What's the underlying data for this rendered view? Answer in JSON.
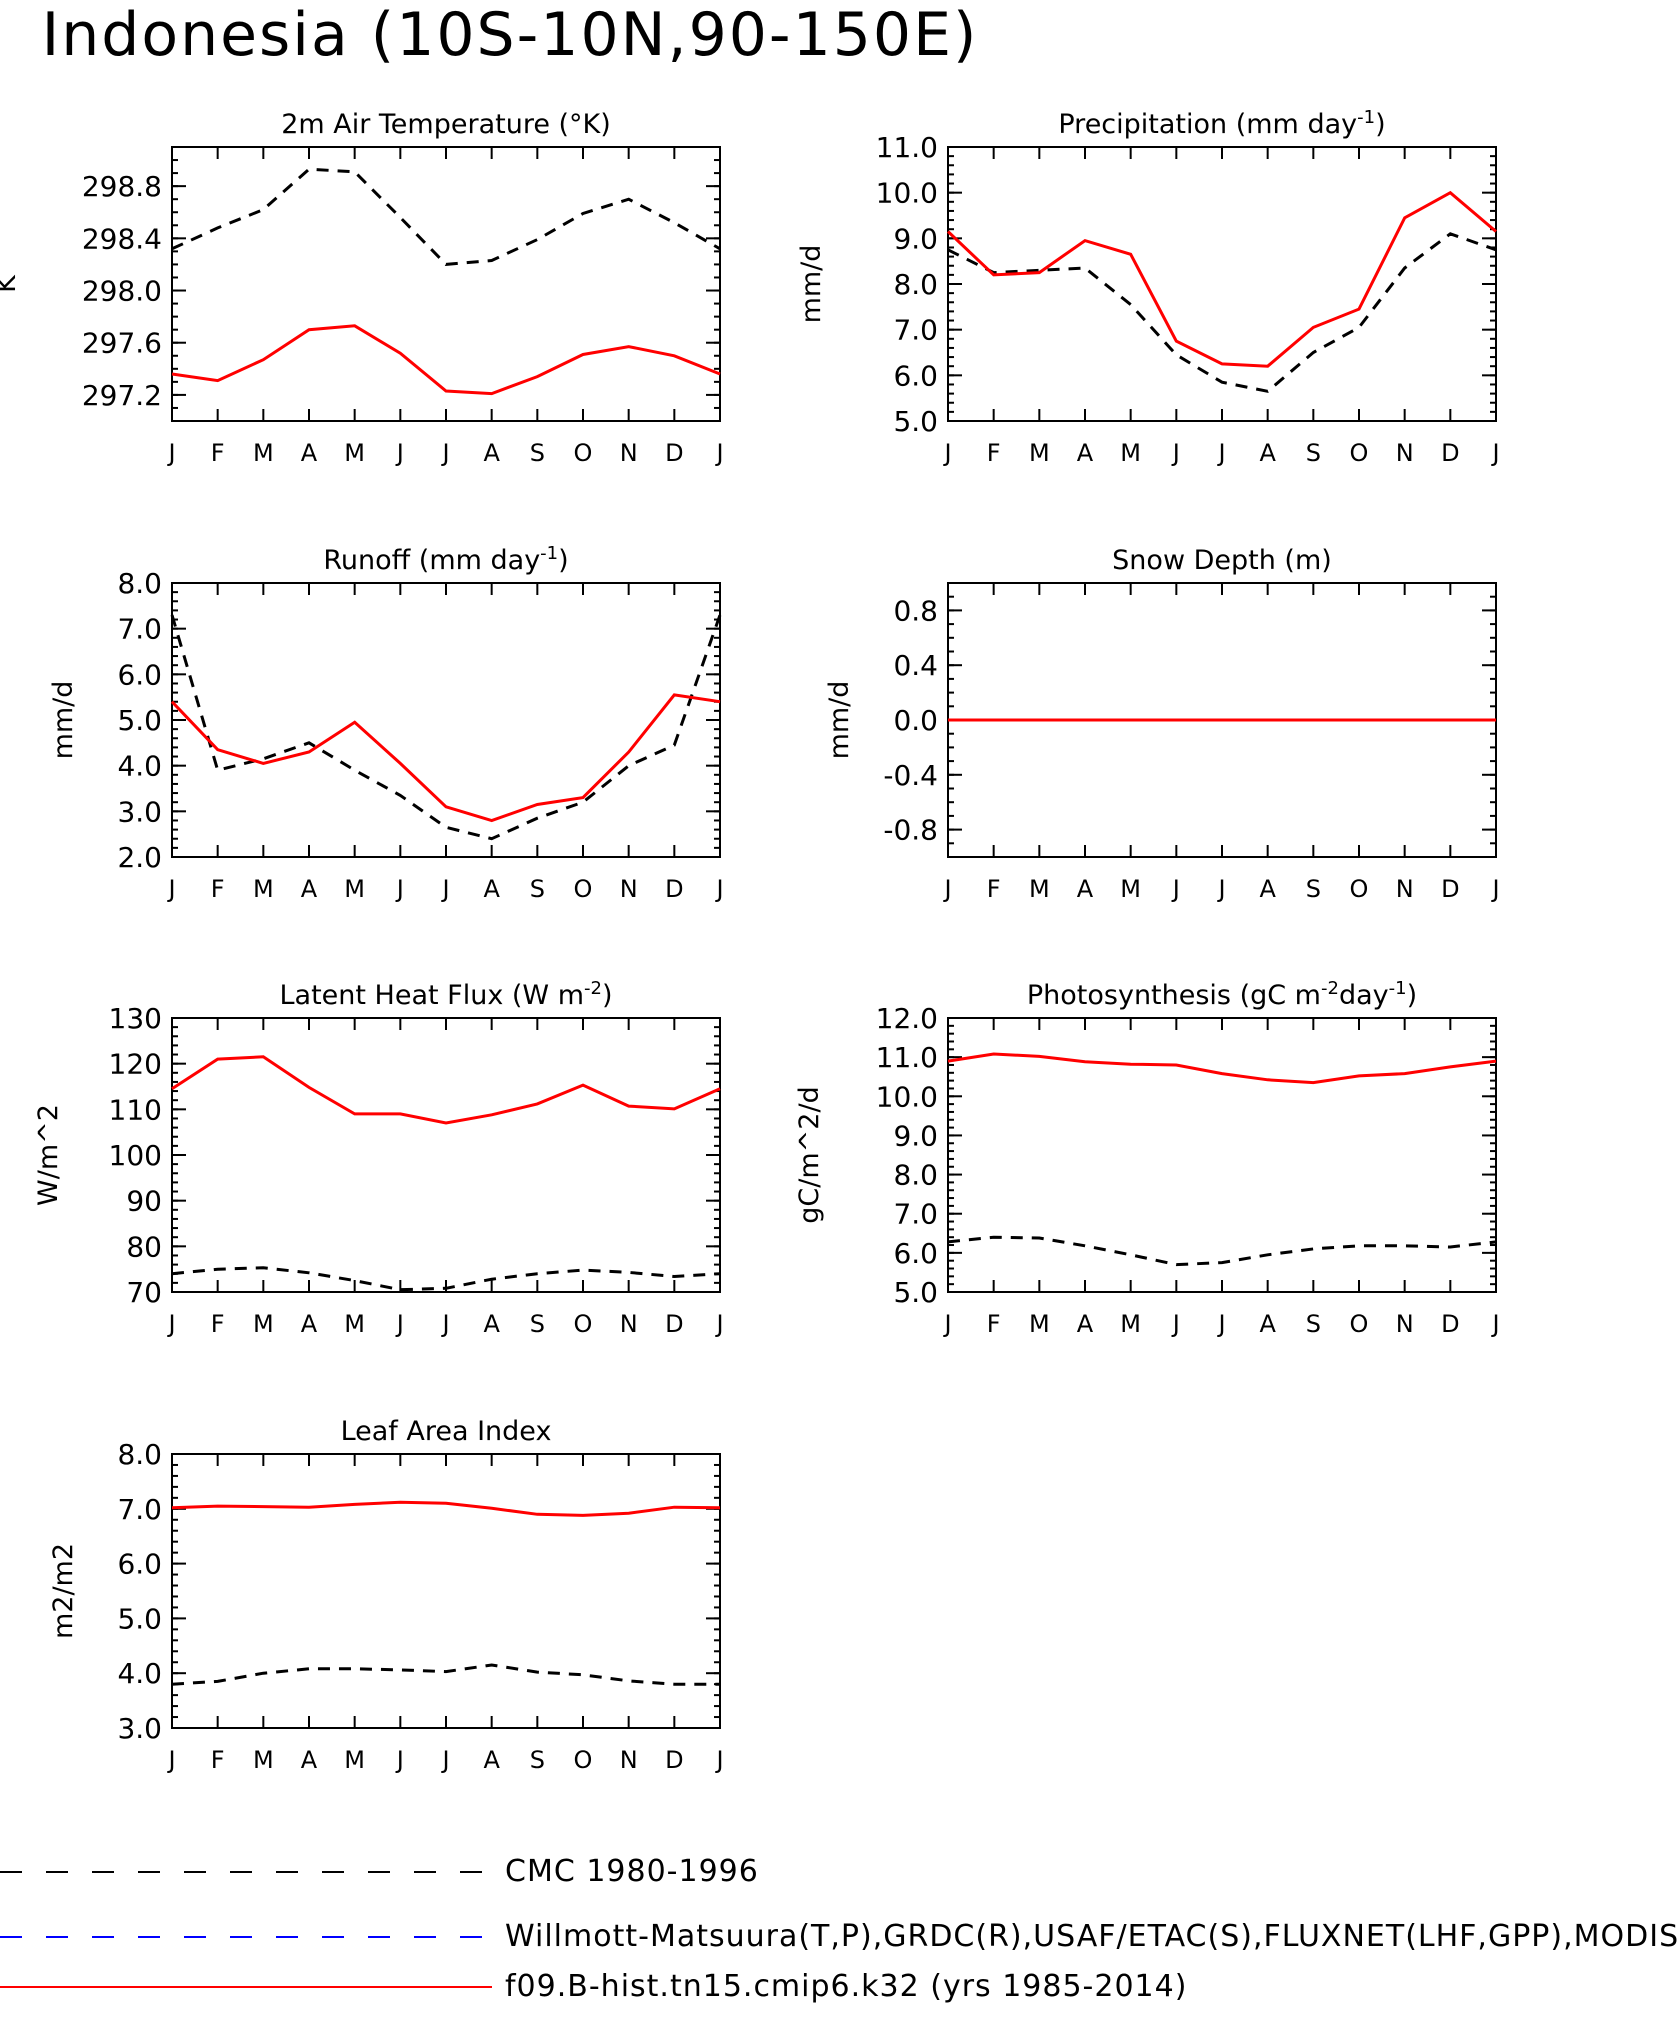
{
  "title": "Indonesia (10S-10N,90-150E)",
  "months": [
    "J",
    "F",
    "M",
    "A",
    "M",
    "J",
    "J",
    "A",
    "S",
    "O",
    "N",
    "D",
    "J"
  ],
  "colors": {
    "obs": "#000000",
    "model": "#ff0000",
    "alt_obs": "#0000ff"
  },
  "legend": [
    {
      "label": "CMC 1980-1996",
      "color": "#000000",
      "style": "dashed"
    },
    {
      "label": "Willmott-Matsuura(T,P),GRDC(R),USAF/ETAC(S),FLUXNET(LHF,GPP),MODIS(L",
      "color": "#0000ff",
      "style": "dashed"
    },
    {
      "label": "f09.B-hist.tn15.cmip6.k32 (yrs 1985-2014)",
      "color": "#ff0000",
      "style": "solid"
    }
  ],
  "chart_data": [
    {
      "type": "line",
      "title": "2m Air Temperature (°K)",
      "ylabel": "K",
      "ylim": [
        297.0,
        299.1
      ],
      "yticks": [
        "297.2",
        "297.6",
        "298.0",
        "298.4",
        "298.8"
      ],
      "ytick_values": [
        297.2,
        297.6,
        298.0,
        298.4,
        298.8
      ],
      "minor_step": 0.1,
      "series": [
        {
          "values": [
            298.32,
            298.48,
            298.62,
            298.93,
            298.91,
            298.56,
            298.2,
            298.23,
            298.39,
            298.59,
            298.7,
            298.52,
            298.32
          ]
        },
        {
          "values": [
            297.36,
            297.31,
            297.47,
            297.7,
            297.73,
            297.52,
            297.23,
            297.21,
            297.34,
            297.51,
            297.57,
            297.5,
            297.36
          ]
        }
      ]
    },
    {
      "type": "line",
      "title": "Precipitation (mm day-1)",
      "ylabel": "mm/d",
      "ylim": [
        5.0,
        11.0
      ],
      "yticks": [
        "5.0",
        "6.0",
        "7.0",
        "8.0",
        "9.0",
        "10.0",
        "11.0"
      ],
      "ytick_values": [
        5,
        6,
        7,
        8,
        9,
        10,
        11
      ],
      "minor_step": 0.2,
      "series": [
        {
          "values": [
            8.75,
            8.25,
            8.3,
            8.35,
            7.55,
            6.45,
            5.85,
            5.65,
            6.5,
            7.05,
            8.35,
            9.1,
            8.75
          ]
        },
        {
          "values": [
            9.15,
            8.2,
            8.25,
            8.95,
            8.65,
            6.75,
            6.25,
            6.2,
            7.05,
            7.45,
            9.45,
            10.0,
            9.15
          ]
        }
      ]
    },
    {
      "type": "line",
      "title": "Runoff (mm day-1)",
      "ylabel": "mm/d",
      "ylim": [
        2.0,
        8.0
      ],
      "yticks": [
        "2.0",
        "3.0",
        "4.0",
        "5.0",
        "6.0",
        "7.0",
        "8.0"
      ],
      "ytick_values": [
        2,
        3,
        4,
        5,
        6,
        7,
        8
      ],
      "minor_step": 0.2,
      "series": [
        {
          "values": [
            7.3,
            3.9,
            4.15,
            4.5,
            3.9,
            3.35,
            2.65,
            2.4,
            2.85,
            3.2,
            4.0,
            4.45,
            7.3
          ]
        },
        {
          "values": [
            5.4,
            4.35,
            4.05,
            4.3,
            4.95,
            4.05,
            3.1,
            2.8,
            3.15,
            3.3,
            4.3,
            5.55,
            5.4
          ]
        }
      ]
    },
    {
      "type": "line",
      "title": "Snow Depth (m)",
      "ylabel": "mm/d",
      "ylim": [
        -1.0,
        1.0
      ],
      "yticks": [
        "-0.8",
        "-0.4",
        "0.0",
        "0.4",
        "0.8"
      ],
      "ytick_values": [
        -0.8,
        -0.4,
        0.0,
        0.4,
        0.8
      ],
      "minor_step": 0.1,
      "series": [
        {
          "values": [
            0,
            0,
            0,
            0,
            0,
            0,
            0,
            0,
            0,
            0,
            0,
            0,
            0
          ]
        },
        {
          "values": [
            0,
            0,
            0,
            0,
            0,
            0,
            0,
            0,
            0,
            0,
            0,
            0,
            0
          ]
        }
      ]
    },
    {
      "type": "line",
      "title": "Latent Heat Flux (W m-2)",
      "ylabel": "W/m^2",
      "ylim": [
        70,
        130
      ],
      "yticks": [
        "70",
        "80",
        "90",
        "100",
        "110",
        "120",
        "130"
      ],
      "ytick_values": [
        70,
        80,
        90,
        100,
        110,
        120,
        130
      ],
      "minor_step": 2,
      "series": [
        {
          "values": [
            74.0,
            75.0,
            75.3,
            74.2,
            72.5,
            70.5,
            70.8,
            72.8,
            74.0,
            74.8,
            74.3,
            73.4,
            74.0
          ]
        },
        {
          "values": [
            114.5,
            121.0,
            121.5,
            114.8,
            109.0,
            109.0,
            107.0,
            108.8,
            111.2,
            115.3,
            110.7,
            110.1,
            114.5
          ]
        }
      ]
    },
    {
      "type": "line",
      "title": "Photosynthesis (gC m-2day-1)",
      "ylabel": "gC/m^2/d",
      "ylim": [
        5.0,
        12.0
      ],
      "yticks": [
        "5.0",
        "6.0",
        "7.0",
        "8.0",
        "9.0",
        "10.0",
        "11.0",
        "12.0"
      ],
      "ytick_values": [
        5,
        6,
        7,
        8,
        9,
        10,
        11,
        12
      ],
      "minor_step": 0.2,
      "series": [
        {
          "values": [
            6.28,
            6.4,
            6.38,
            6.18,
            5.95,
            5.7,
            5.75,
            5.95,
            6.1,
            6.18,
            6.18,
            6.15,
            6.28
          ]
        },
        {
          "values": [
            10.9,
            11.08,
            11.02,
            10.88,
            10.82,
            10.8,
            10.58,
            10.42,
            10.35,
            10.52,
            10.58,
            10.75,
            10.9
          ]
        }
      ]
    },
    {
      "type": "line",
      "title": "Leaf Area Index",
      "ylabel": "m2/m2",
      "ylim": [
        3.0,
        8.0
      ],
      "yticks": [
        "3.0",
        "4.0",
        "5.0",
        "6.0",
        "7.0",
        "8.0"
      ],
      "ytick_values": [
        3,
        4,
        5,
        6,
        7,
        8
      ],
      "minor_step": 0.2,
      "series": [
        {
          "values": [
            3.8,
            3.85,
            4.0,
            4.08,
            4.08,
            4.06,
            4.03,
            4.15,
            4.02,
            3.97,
            3.86,
            3.8,
            3.8
          ]
        },
        {
          "values": [
            7.02,
            7.05,
            7.04,
            7.03,
            7.08,
            7.12,
            7.1,
            7.01,
            6.9,
            6.88,
            6.92,
            7.03,
            7.02
          ]
        }
      ]
    }
  ]
}
